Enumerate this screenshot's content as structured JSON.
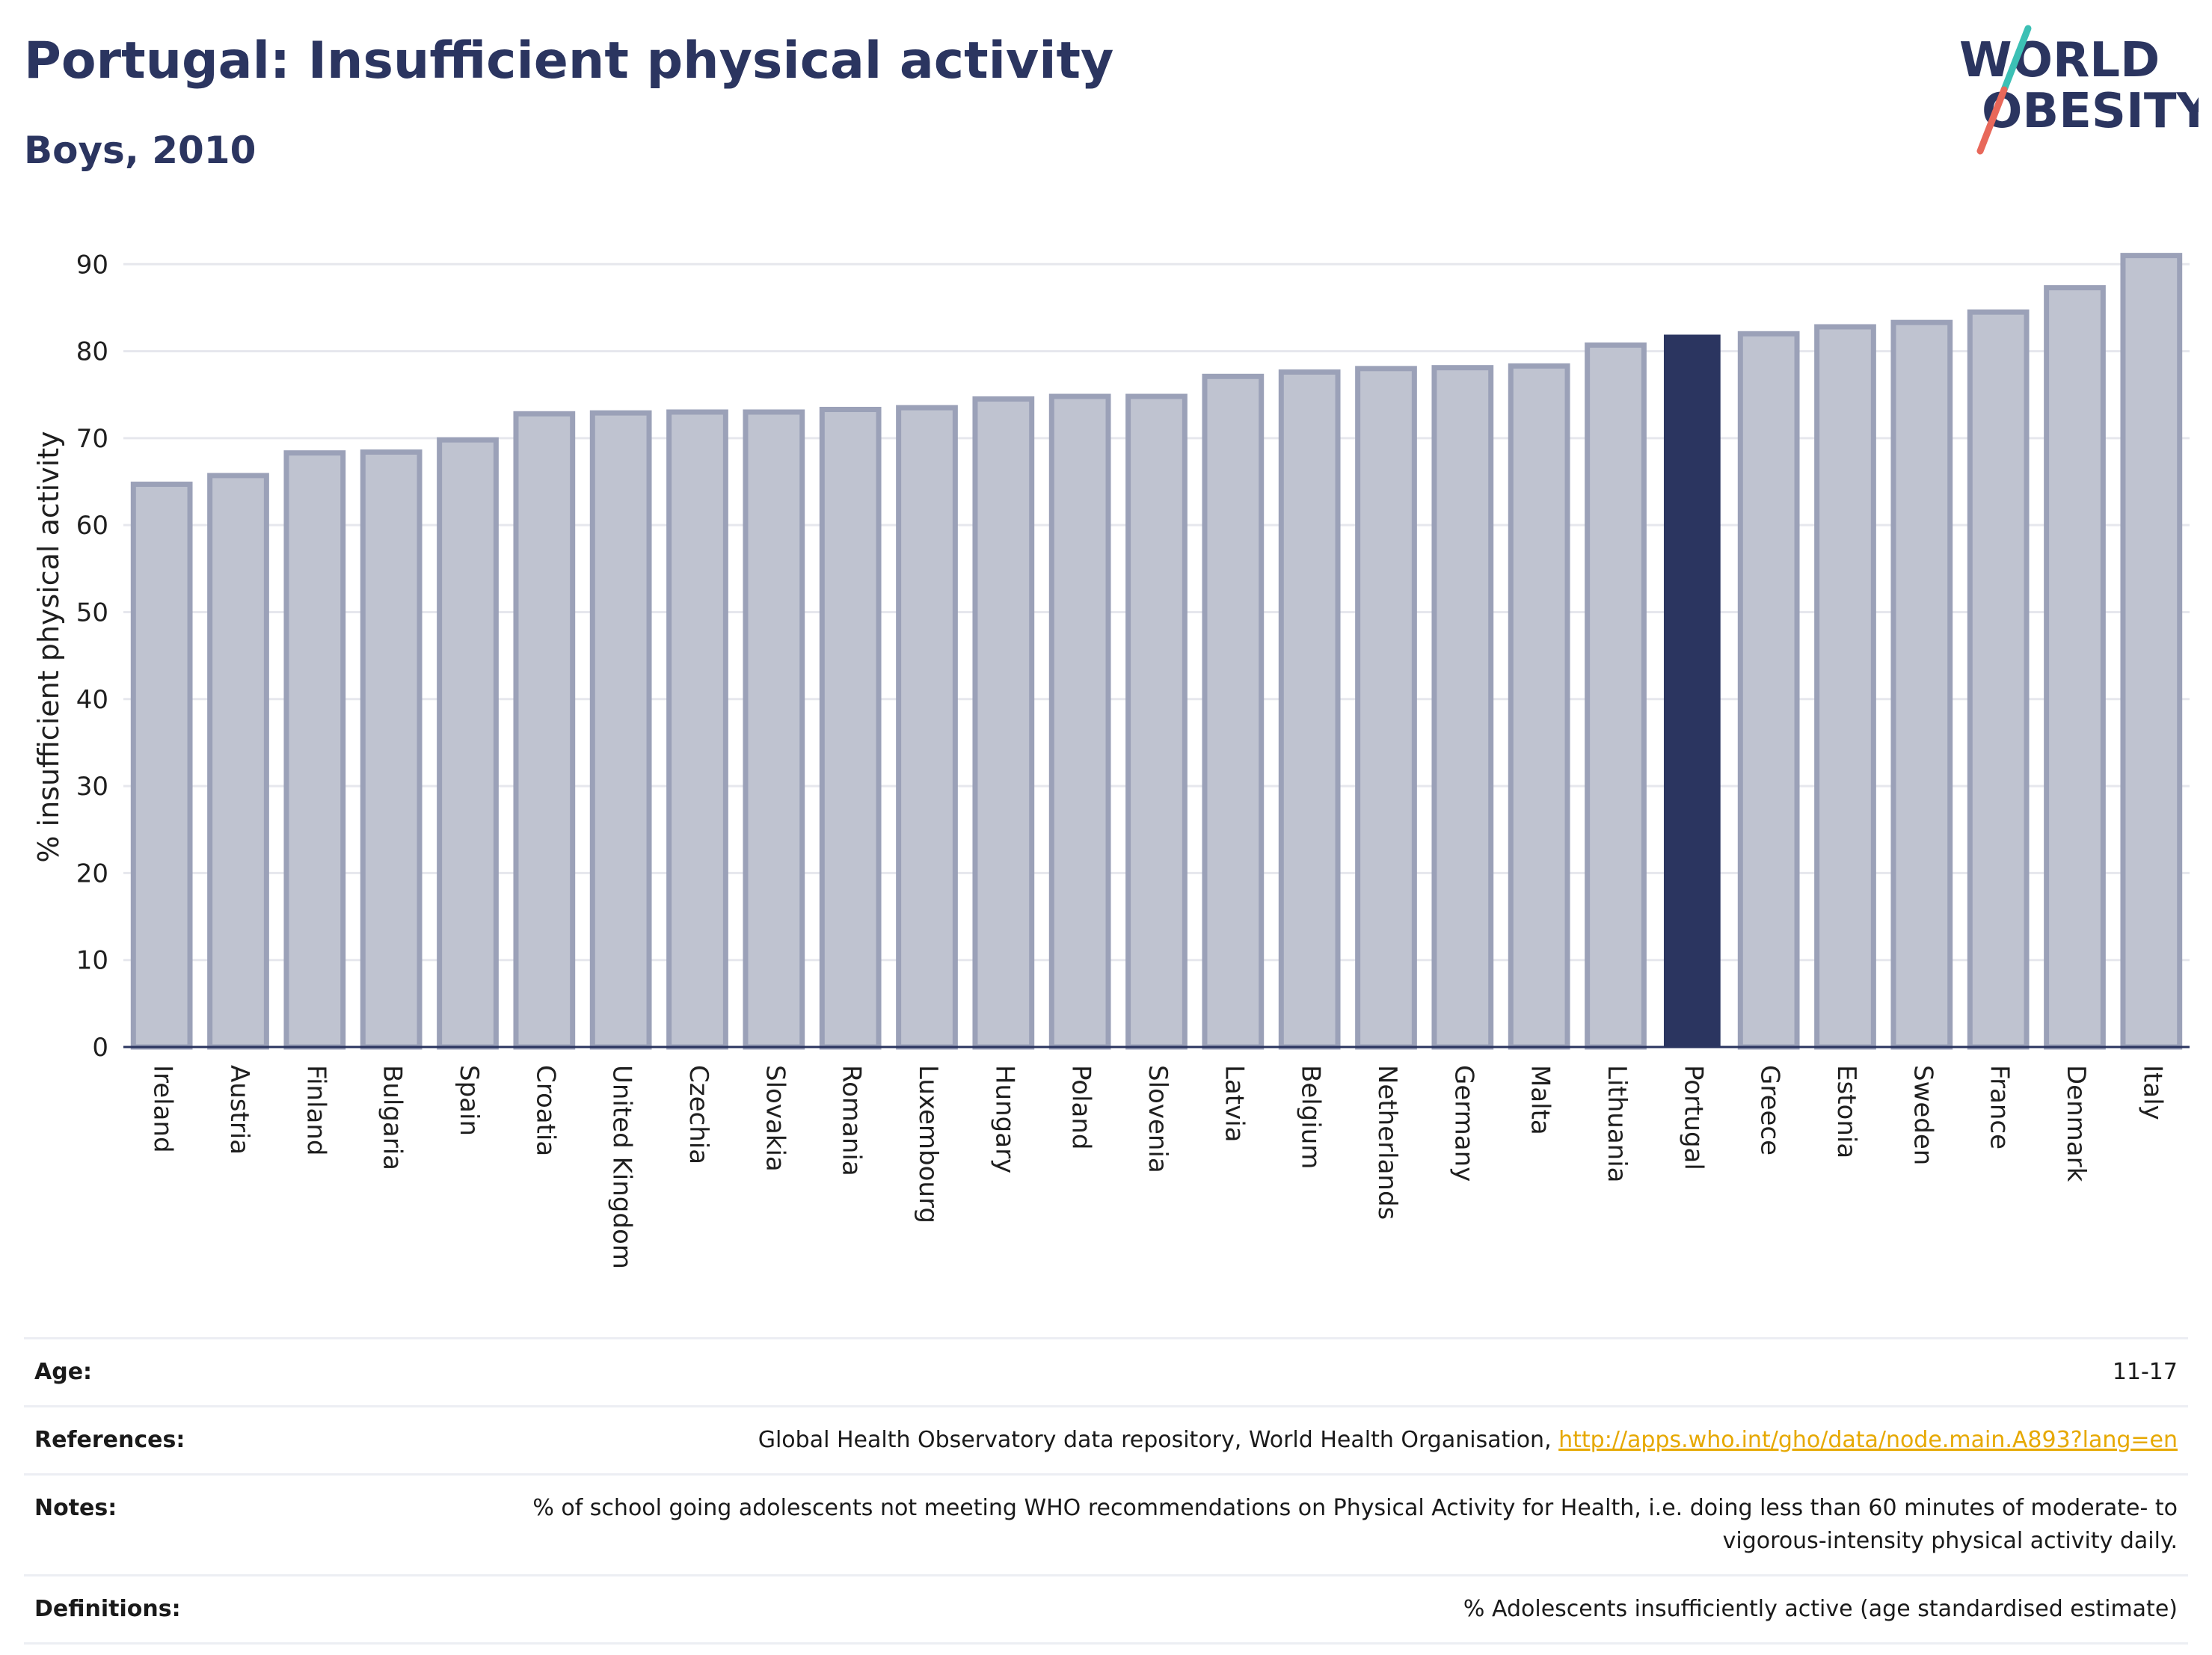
{
  "header": {
    "title": "Portugal: Insufficient physical activity",
    "subtitle": "Boys, 2010"
  },
  "logo": {
    "line1": "WORLD",
    "line2": "OBESITY",
    "colors": {
      "text": "#2b3560",
      "slash_teal": "#3cc0b5",
      "slash_coral": "#e8685a"
    }
  },
  "colors": {
    "bar_default": "#bfc3d0",
    "bar_default_stroke": "#9ba1b8",
    "bar_highlight": "#2b3560",
    "grid": "#e6e7ed",
    "axis": "#2b3560"
  },
  "chart_data": {
    "type": "bar",
    "ylabel": "% insufficient physical activity",
    "ylim": [
      0,
      92
    ],
    "yticks": [
      0,
      10,
      20,
      30,
      40,
      50,
      60,
      70,
      80,
      90
    ],
    "grid": true,
    "highlight": "Portugal",
    "categories": [
      "Ireland",
      "Austria",
      "Finland",
      "Bulgaria",
      "Spain",
      "Croatia",
      "United Kingdom",
      "Czechia",
      "Slovakia",
      "Romania",
      "Luxembourg",
      "Hungary",
      "Poland",
      "Slovenia",
      "Latvia",
      "Belgium",
      "Netherlands",
      "Germany",
      "Malta",
      "Lithuania",
      "Portugal",
      "Greece",
      "Estonia",
      "Sweden",
      "France",
      "Denmark",
      "Italy"
    ],
    "values": [
      64.7,
      65.7,
      68.3,
      68.4,
      69.8,
      72.8,
      72.9,
      73.0,
      73.0,
      73.3,
      73.5,
      74.5,
      74.8,
      74.8,
      77.1,
      77.6,
      78.0,
      78.1,
      78.3,
      80.7,
      81.9,
      82.0,
      82.8,
      83.3,
      84.5,
      87.3,
      91.0
    ]
  },
  "meta": [
    {
      "key": "Age:",
      "value": "11-17"
    },
    {
      "key": "References:",
      "value": "Global Health Observatory data repository, World Health Organisation, ",
      "link": "http://apps.who.int/gho/data/node.main.A893?lang=en"
    },
    {
      "key": "Notes:",
      "value": "% of school going adolescents not meeting WHO recommendations on Physical Activity for Health, i.e. doing less than 60 minutes of moderate- to vigorous-intensity physical activity daily."
    },
    {
      "key": "Definitions:",
      "value": "% Adolescents insufficiently active (age standardised estimate)"
    }
  ]
}
